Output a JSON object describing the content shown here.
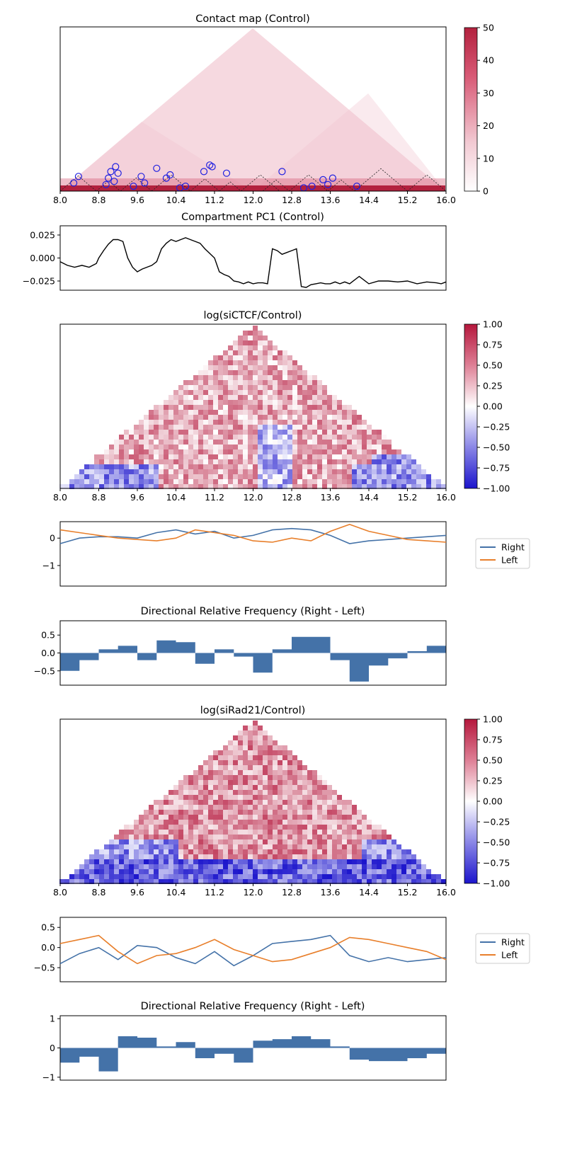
{
  "chart_data": [
    {
      "type": "heatmap",
      "title": "Contact map (Control)",
      "shape": "triangle",
      "x_ticks": [
        "8.0",
        "8.8",
        "9.6",
        "10.4",
        "11.2",
        "12.0",
        "12.8",
        "13.6",
        "14.4",
        "15.2",
        "16.0"
      ],
      "xlim": [
        8.0,
        16.0
      ],
      "colormap": "white-to-red",
      "colorbar_ticks": [
        "50",
        "40",
        "30",
        "20",
        "10",
        "0"
      ],
      "clim": [
        0,
        50
      ],
      "tads": [
        [
          8.0,
          8.75
        ],
        [
          8.75,
          9.25
        ],
        [
          9.25,
          9.9
        ],
        [
          9.9,
          10.7
        ],
        [
          10.7,
          11.3
        ],
        [
          11.3,
          11.75
        ],
        [
          11.75,
          12.55
        ],
        [
          12.2,
          12.75
        ],
        [
          12.75,
          13.55
        ],
        [
          13.55,
          14.1
        ],
        [
          14.1,
          15.2
        ],
        [
          15.2,
          16.0
        ]
      ],
      "loop_points": [
        [
          8.28,
          0.05
        ],
        [
          8.38,
          0.09
        ],
        [
          8.95,
          0.04
        ],
        [
          9.0,
          0.08
        ],
        [
          9.05,
          0.12
        ],
        [
          9.12,
          0.06
        ],
        [
          9.2,
          0.11
        ],
        [
          9.15,
          0.15
        ],
        [
          9.52,
          0.03
        ],
        [
          9.68,
          0.09
        ],
        [
          9.75,
          0.05
        ],
        [
          10.0,
          0.14
        ],
        [
          10.2,
          0.08
        ],
        [
          10.28,
          0.1
        ],
        [
          10.48,
          0.02
        ],
        [
          10.6,
          0.03
        ],
        [
          10.98,
          0.12
        ],
        [
          11.1,
          0.16
        ],
        [
          11.15,
          0.15
        ],
        [
          11.45,
          0.11
        ],
        [
          12.6,
          0.12
        ],
        [
          13.05,
          0.02
        ],
        [
          13.22,
          0.03
        ],
        [
          13.45,
          0.07
        ],
        [
          13.55,
          0.04
        ],
        [
          13.65,
          0.08
        ],
        [
          14.15,
          0.03
        ]
      ]
    },
    {
      "type": "line",
      "title": "Compartment PC1 (Control)",
      "y_ticks": [
        "0.025",
        "0.000",
        "−0.025"
      ],
      "ylim": [
        -0.035,
        0.035
      ],
      "xlim": [
        8.0,
        16.0
      ],
      "x": [
        8.0,
        8.15,
        8.3,
        8.45,
        8.6,
        8.75,
        8.8,
        8.9,
        9.0,
        9.1,
        9.2,
        9.3,
        9.4,
        9.5,
        9.6,
        9.7,
        9.8,
        9.9,
        10.0,
        10.1,
        10.2,
        10.3,
        10.4,
        10.5,
        10.6,
        10.7,
        10.8,
        10.9,
        11.0,
        11.1,
        11.2,
        11.3,
        11.4,
        11.5,
        11.6,
        11.7,
        11.8,
        11.9,
        12.0,
        12.1,
        12.2,
        12.3,
        12.4,
        12.5,
        12.6,
        12.7,
        12.8,
        12.9,
        13.0,
        13.1,
        13.2,
        13.3,
        13.4,
        13.5,
        13.6,
        13.7,
        13.8,
        13.9,
        14.0,
        14.2,
        14.4,
        14.6,
        14.8,
        15.0,
        15.2,
        15.4,
        15.6,
        15.8,
        15.9,
        16.0
      ],
      "series": [
        {
          "values": [
            -0.004,
            -0.008,
            -0.01,
            -0.008,
            -0.01,
            -0.006,
            0.0,
            0.008,
            0.015,
            0.02,
            0.02,
            0.018,
            0.0,
            -0.01,
            -0.015,
            -0.012,
            -0.01,
            -0.008,
            -0.004,
            0.01,
            0.016,
            0.02,
            0.018,
            0.02,
            0.022,
            0.02,
            0.018,
            0.016,
            0.01,
            0.005,
            0.0,
            -0.015,
            -0.018,
            -0.02,
            -0.025,
            -0.026,
            -0.028,
            -0.026,
            -0.028,
            -0.027,
            -0.027,
            -0.028,
            0.01,
            0.008,
            0.004,
            0.006,
            0.008,
            0.01,
            -0.031,
            -0.032,
            -0.029,
            -0.028,
            -0.027,
            -0.028,
            -0.028,
            -0.026,
            -0.028,
            -0.026,
            -0.028,
            -0.02,
            -0.028,
            -0.025,
            -0.025,
            -0.026,
            -0.025,
            -0.028,
            -0.026,
            -0.027,
            -0.028,
            -0.026
          ]
        }
      ]
    },
    {
      "type": "heatmap",
      "title": "log(siCTCF/Control)",
      "shape": "triangle",
      "x_ticks": [
        "8.0",
        "8.8",
        "9.6",
        "10.4",
        "11.2",
        "12.0",
        "12.8",
        "13.6",
        "14.4",
        "15.2",
        "16.0"
      ],
      "xlim": [
        8.0,
        16.0
      ],
      "colormap": "coolwarm-diverging",
      "colorbar_ticks": [
        "1.00",
        "0.75",
        "0.50",
        "0.25",
        "0.00",
        "−0.25",
        "−0.50",
        "−0.75",
        "−1.00"
      ],
      "clim": [
        -1,
        1
      ]
    },
    {
      "type": "line",
      "title": "",
      "y_ticks": [
        "0",
        "−1"
      ],
      "ylim": [
        -1.75,
        0.6
      ],
      "xlim": [
        8.0,
        16.0
      ],
      "x": [
        8.0,
        8.4,
        8.8,
        9.2,
        9.6,
        10.0,
        10.4,
        10.8,
        11.2,
        11.6,
        12.0,
        12.4,
        12.8,
        13.2,
        13.6,
        14.0,
        14.4,
        14.8,
        15.2,
        15.6,
        16.0
      ],
      "series": [
        {
          "name": "Right",
          "color": "#4472a8",
          "values": [
            -0.2,
            0.0,
            0.05,
            0.05,
            0.0,
            0.2,
            0.3,
            0.15,
            0.25,
            0.0,
            0.1,
            0.3,
            0.35,
            0.3,
            0.1,
            -0.2,
            -0.1,
            -0.05,
            0.0,
            0.05,
            0.1
          ]
        },
        {
          "name": "Left",
          "color": "#e87f2b",
          "values": [
            0.3,
            0.2,
            0.1,
            0.0,
            -0.05,
            -0.1,
            0.0,
            0.3,
            0.2,
            0.1,
            -0.1,
            -0.15,
            0.0,
            -0.1,
            0.25,
            0.5,
            0.25,
            0.1,
            -0.05,
            -0.1,
            -0.15
          ]
        }
      ]
    },
    {
      "type": "bar",
      "title": "Directional Relative Frequency (Right - Left)",
      "y_ticks": [
        "0.5",
        "0.0",
        "−0.5"
      ],
      "ylim": [
        -0.9,
        0.9
      ],
      "xlim": [
        8.0,
        16.0
      ],
      "x": [
        8.0,
        8.4,
        8.8,
        9.2,
        9.6,
        10.0,
        10.4,
        10.8,
        11.2,
        11.6,
        12.0,
        12.4,
        12.8,
        13.2,
        13.6,
        14.0,
        14.4,
        14.8,
        15.2,
        15.6,
        16.0
      ],
      "values": [
        -0.5,
        -0.2,
        0.1,
        0.2,
        -0.2,
        0.35,
        0.3,
        -0.3,
        0.1,
        -0.1,
        -0.55,
        0.1,
        0.45,
        0.45,
        -0.2,
        -0.8,
        -0.35,
        -0.15,
        0.05,
        0.2,
        0.25
      ]
    },
    {
      "type": "heatmap",
      "title": "log(siRad21/Control)",
      "shape": "triangle",
      "x_ticks": [
        "8.0",
        "8.8",
        "9.6",
        "10.4",
        "11.2",
        "12.0",
        "12.8",
        "13.6",
        "14.4",
        "15.2",
        "16.0"
      ],
      "xlim": [
        8.0,
        16.0
      ],
      "colormap": "coolwarm-diverging",
      "colorbar_ticks": [
        "1.00",
        "0.75",
        "0.50",
        "0.25",
        "0.00",
        "−0.25",
        "−0.50",
        "−0.75",
        "−1.00"
      ],
      "clim": [
        -1,
        1
      ]
    },
    {
      "type": "line",
      "title": "",
      "y_ticks": [
        "0.5",
        "0.0",
        "−0.5"
      ],
      "ylim": [
        -0.85,
        0.75
      ],
      "xlim": [
        8.0,
        16.0
      ],
      "x": [
        8.0,
        8.4,
        8.8,
        9.2,
        9.6,
        10.0,
        10.4,
        10.8,
        11.2,
        11.6,
        12.0,
        12.4,
        12.8,
        13.2,
        13.6,
        14.0,
        14.4,
        14.8,
        15.2,
        15.6,
        16.0
      ],
      "series": [
        {
          "name": "Right",
          "color": "#4472a8",
          "values": [
            -0.4,
            -0.15,
            0.0,
            -0.3,
            0.05,
            0.0,
            -0.25,
            -0.4,
            -0.1,
            -0.45,
            -0.2,
            0.1,
            0.15,
            0.2,
            0.3,
            -0.2,
            -0.35,
            -0.25,
            -0.35,
            -0.3,
            -0.25
          ]
        },
        {
          "name": "Left",
          "color": "#e87f2b",
          "values": [
            0.1,
            0.2,
            0.3,
            -0.1,
            -0.4,
            -0.2,
            -0.15,
            0.0,
            0.2,
            -0.05,
            -0.2,
            -0.35,
            -0.3,
            -0.15,
            0.0,
            0.25,
            0.2,
            0.1,
            0.0,
            -0.1,
            -0.3
          ]
        }
      ]
    },
    {
      "type": "bar",
      "title": "Directional Relative Frequency (Right - Left)",
      "y_ticks": [
        "1",
        "0",
        "−1"
      ],
      "ylim": [
        -1.1,
        1.1
      ],
      "xlim": [
        8.0,
        16.0
      ],
      "x": [
        8.0,
        8.4,
        8.8,
        9.2,
        9.6,
        10.0,
        10.4,
        10.8,
        11.2,
        11.6,
        12.0,
        12.4,
        12.8,
        13.2,
        13.6,
        14.0,
        14.4,
        14.8,
        15.2,
        15.6,
        16.0
      ],
      "values": [
        -0.5,
        -0.3,
        -0.8,
        0.4,
        0.35,
        0.05,
        0.2,
        -0.35,
        -0.2,
        -0.5,
        0.25,
        0.3,
        0.4,
        0.3,
        0.05,
        -0.4,
        -0.45,
        -0.45,
        -0.35,
        -0.2,
        0.05
      ]
    }
  ]
}
